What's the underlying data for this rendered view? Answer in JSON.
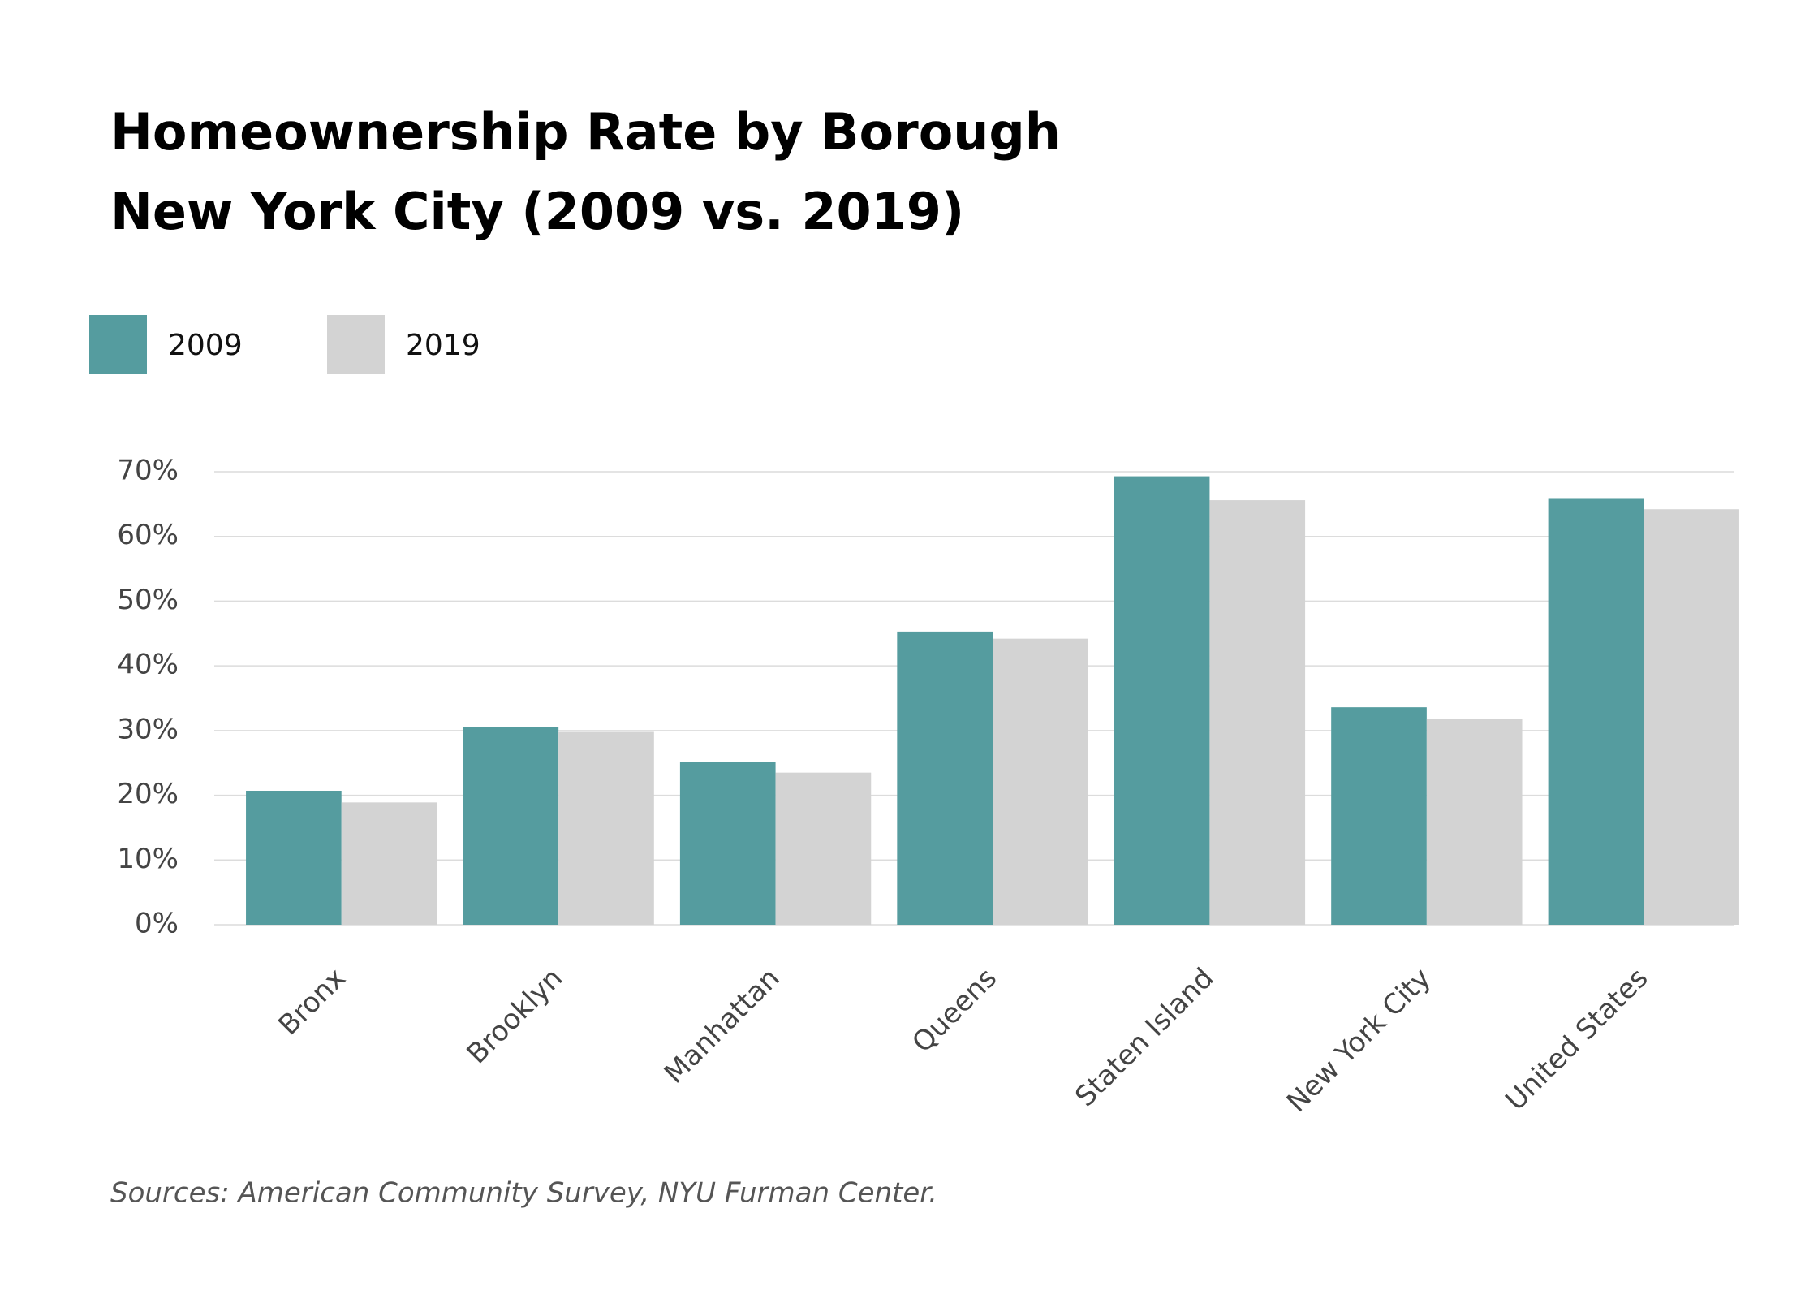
{
  "chart_data": {
    "type": "bar",
    "title": "Homeownership Rate by Borough",
    "subtitle": "New York City (2009 vs. 2019)",
    "categories": [
      "Bronx",
      "Brooklyn",
      "Manhattan",
      "Queens",
      "Staten Island",
      "New York City",
      "United States"
    ],
    "series": [
      {
        "name": "2009",
        "color": "#559c9f",
        "values": [
          20.7,
          30.5,
          25.1,
          45.3,
          69.3,
          33.6,
          65.8
        ]
      },
      {
        "name": "2019",
        "color": "#d3d3d3",
        "values": [
          18.9,
          29.8,
          23.5,
          44.2,
          65.6,
          31.8,
          64.2
        ]
      }
    ],
    "ylim": [
      0,
      70
    ],
    "yticks": [
      {
        "value": 0,
        "label": "0%"
      },
      {
        "value": 10,
        "label": "10%"
      },
      {
        "value": 20,
        "label": "20%"
      },
      {
        "value": 30,
        "label": "30%"
      },
      {
        "value": 40,
        "label": "40%"
      },
      {
        "value": 50,
        "label": "50%"
      },
      {
        "value": 60,
        "label": "60%"
      },
      {
        "value": 70,
        "label": "70%"
      }
    ],
    "grid": true,
    "source": "Sources: American Community Survey, NYU Furman Center."
  }
}
